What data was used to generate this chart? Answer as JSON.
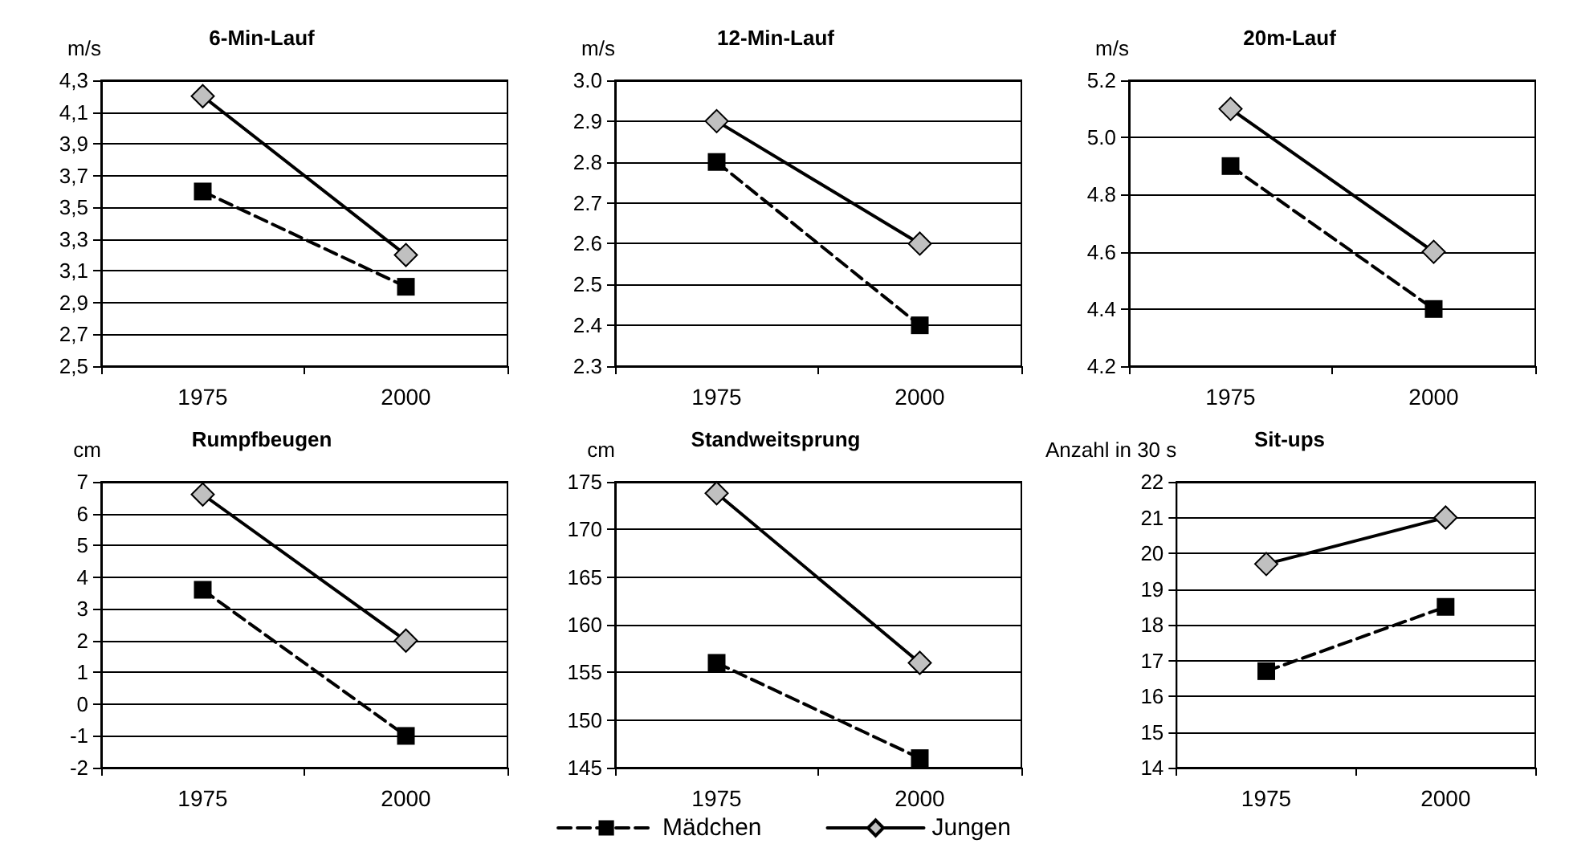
{
  "chart_data": [
    {
      "type": "line",
      "title": "6-Min-Lauf",
      "ylabel": "m/s",
      "categories": [
        "1975",
        "2000"
      ],
      "ylim": [
        2.5,
        4.3
      ],
      "yticks": [
        {
          "value": 2.5,
          "label": "2,5"
        },
        {
          "value": 2.7,
          "label": "2,7"
        },
        {
          "value": 2.9,
          "label": "2,9"
        },
        {
          "value": 3.1,
          "label": "3,1"
        },
        {
          "value": 3.3,
          "label": "3,3"
        },
        {
          "value": 3.5,
          "label": "3,5"
        },
        {
          "value": 3.7,
          "label": "3,7"
        },
        {
          "value": 3.9,
          "label": "3,9"
        },
        {
          "value": 4.1,
          "label": "4,1"
        },
        {
          "value": 4.3,
          "label": "4,3"
        }
      ],
      "grid": "y",
      "legend": false,
      "series": [
        {
          "color": "#000000",
          "marker": "square",
          "line_style": "dashed",
          "values": [
            3.6,
            3.0
          ]
        },
        {
          "color": "#000000",
          "marker": "diamond",
          "line_style": "solid",
          "values": [
            4.2,
            3.2
          ]
        }
      ]
    },
    {
      "type": "line",
      "title": "12-Min-Lauf",
      "ylabel": "m/s",
      "categories": [
        "1975",
        "2000"
      ],
      "ylim": [
        2.3,
        3.0
      ],
      "yticks": [
        2.3,
        2.4,
        2.5,
        2.6,
        2.7,
        2.8,
        2.9,
        {
          "value": 3.0,
          "label": "3.0"
        }
      ],
      "grid": "y",
      "legend": false,
      "series": [
        {
          "color": "#000000",
          "marker": "square",
          "line_style": "dashed",
          "values": [
            2.8,
            2.4
          ]
        },
        {
          "color": "#000000",
          "marker": "diamond",
          "line_style": "solid",
          "values": [
            2.9,
            2.6
          ]
        }
      ]
    },
    {
      "type": "line",
      "title": "20m-Lauf",
      "ylabel": "m/s",
      "categories": [
        "1975",
        "2000"
      ],
      "ylim": [
        4.2,
        5.2
      ],
      "yticks": [
        4.2,
        4.4,
        4.6,
        4.8,
        {
          "value": 5.0,
          "label": "5.0"
        },
        5.2
      ],
      "grid": "y",
      "legend": false,
      "series": [
        {
          "color": "#000000",
          "marker": "square",
          "line_style": "dashed",
          "values": [
            4.9,
            4.4
          ]
        },
        {
          "color": "#000000",
          "marker": "diamond",
          "line_style": "solid",
          "values": [
            5.1,
            4.6
          ]
        }
      ]
    },
    {
      "type": "line",
      "title": "Rumpfbeugen",
      "ylabel": "cm",
      "categories": [
        "1975",
        "2000"
      ],
      "ylim": [
        -2,
        7
      ],
      "yticks": [
        -2,
        -1,
        0,
        1,
        2,
        3,
        4,
        5,
        6,
        7
      ],
      "grid": "y",
      "legend": false,
      "series": [
        {
          "color": "#000000",
          "marker": "square",
          "line_style": "dashed",
          "values": [
            3.6,
            -1.0
          ]
        },
        {
          "color": "#000000",
          "marker": "diamond",
          "line_style": "solid",
          "values": [
            6.6,
            2.0
          ]
        }
      ]
    },
    {
      "type": "line",
      "title": "Standweitsprung",
      "ylabel": "cm",
      "categories": [
        "1975",
        "2000"
      ],
      "ylim": [
        145,
        175
      ],
      "yticks": [
        145,
        150,
        155,
        160,
        165,
        170,
        175
      ],
      "grid": "y",
      "legend": "bottom",
      "series": [
        {
          "name": "Mädchen",
          "color": "#000000",
          "marker": "square",
          "line_style": "dashed",
          "values": [
            156,
            146
          ]
        },
        {
          "name": "Jungen",
          "color": "#000000",
          "marker": "diamond",
          "line_style": "solid",
          "values": [
            173.8,
            156
          ]
        }
      ]
    },
    {
      "type": "line",
      "title": "Sit-ups",
      "ylabel": "Anzahl in 30 s",
      "categories": [
        "1975",
        "2000"
      ],
      "ylim": [
        14,
        22
      ],
      "yticks": [
        14,
        15,
        16,
        17,
        18,
        19,
        20,
        21,
        22
      ],
      "grid": "y",
      "legend": false,
      "series": [
        {
          "color": "#000000",
          "marker": "square",
          "line_style": "dashed",
          "values": [
            16.7,
            18.5
          ]
        },
        {
          "color": "#000000",
          "marker": "diamond",
          "line_style": "solid",
          "values": [
            19.7,
            21.0
          ]
        }
      ]
    }
  ]
}
